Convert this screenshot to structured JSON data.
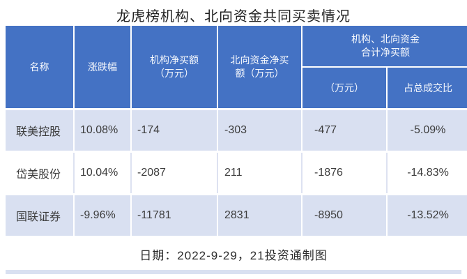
{
  "title": "龙虎榜机构、北向资金共同买卖情况",
  "colors": {
    "header_bg": "#4472c4",
    "header_text": "#ffffff",
    "stripe_bg": "#d9e0f1",
    "body_text": "#3d3d3d"
  },
  "table": {
    "headers": {
      "name": "名称",
      "change": "涨跌幅",
      "inst_net_buy": "机构净买额\n（万元）",
      "north_net_buy": "北向资金净买\n额（万元）",
      "combined_group": "机构、北向资金\n合计净买额",
      "combined_amount": "（万元）",
      "combined_ratio": "占总成交比"
    },
    "rows": [
      {
        "name": "联美控股",
        "change": "10.08%",
        "inst": "-174",
        "north": "-303",
        "combined": "-477",
        "ratio": "-5.09%"
      },
      {
        "name": "岱美股份",
        "change": "10.04%",
        "inst": "-2087",
        "north": "211",
        "combined": "-1876",
        "ratio": "-14.83%"
      },
      {
        "name": "国联证券",
        "change": "-9.96%",
        "inst": "-11781",
        "north": "2831",
        "combined": "-8950",
        "ratio": "-13.52%"
      }
    ]
  },
  "footer": "日期：2022-9-29，21投资通制图",
  "chart_data": {
    "type": "table",
    "title": "龙虎榜机构、北向资金共同买卖情况",
    "columns": [
      "名称",
      "涨跌幅",
      "机构净买额（万元）",
      "北向资金净买额（万元）",
      "机构、北向资金合计净买额（万元）",
      "机构、北向资金合计净买额占总成交比"
    ],
    "rows": [
      [
        "联美控股",
        "10.08%",
        -174,
        -303,
        -477,
        "-5.09%"
      ],
      [
        "岱美股份",
        "10.04%",
        -2087,
        211,
        -1876,
        "-14.83%"
      ],
      [
        "国联证券",
        "-9.96%",
        -11781,
        2831,
        -8950,
        "-13.52%"
      ]
    ],
    "note": "日期：2022-9-29，21投资通制图"
  }
}
